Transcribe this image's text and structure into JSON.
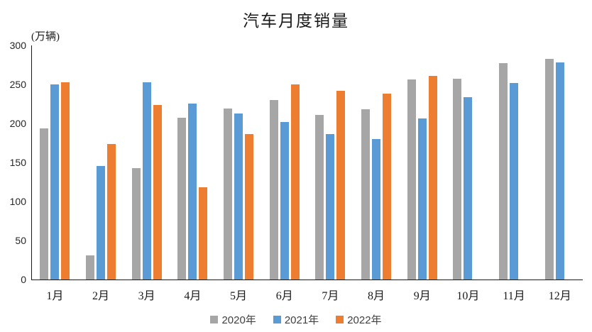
{
  "chart_data": {
    "type": "bar",
    "title": "汽车月度销量",
    "unit_label": "(万辆)",
    "categories": [
      "1月",
      "2月",
      "3月",
      "4月",
      "5月",
      "6月",
      "7月",
      "8月",
      "9月",
      "10月",
      "11月",
      "12月"
    ],
    "series": [
      {
        "name": "2020年",
        "color": "#A6A6A6",
        "values": [
          194.1,
          31.0,
          143.0,
          207.0,
          219.4,
          230.0,
          211.2,
          218.6,
          256.5,
          257.3,
          277.0,
          283.1
        ]
      },
      {
        "name": "2021年",
        "color": "#5B9BD5",
        "values": [
          250.3,
          145.5,
          252.6,
          225.2,
          212.8,
          201.5,
          186.4,
          179.9,
          206.7,
          233.3,
          252.2,
          278.6
        ]
      },
      {
        "name": "2022年",
        "color": "#ED7D31",
        "values": [
          253.1,
          173.6,
          223.4,
          118.1,
          186.2,
          250.2,
          242.0,
          238.3,
          261.0,
          null,
          null,
          null
        ]
      }
    ],
    "ylim": [
      0,
      300
    ],
    "ytick_step": 50,
    "yticks": [
      0,
      50,
      100,
      150,
      200,
      250,
      300
    ],
    "grid": false,
    "legend_position": "bottom",
    "axis_color": "#1a1a1a",
    "background_color": "#ffffff"
  }
}
